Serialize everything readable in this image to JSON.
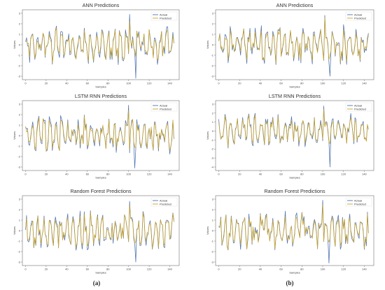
{
  "column_labels": [
    "(a)",
    "(b)"
  ],
  "chart_data": [
    {
      "type": "line",
      "title": "ANN Predictions",
      "xlabel": "Samples",
      "ylabel": "Values",
      "xlim": [
        0,
        140
      ],
      "ylim": [
        -3,
        3
      ],
      "xticks": [
        0,
        20,
        40,
        60,
        80,
        100,
        120,
        140
      ],
      "yticks": [
        -3,
        -2,
        -1,
        0,
        1,
        2,
        3
      ],
      "legend": "top-right",
      "seed": 11,
      "spike_down": [
        107,
        -3.2
      ],
      "spike_up": [
        101,
        2.9
      ],
      "series": [
        {
          "name": "Actual",
          "color": "#4c72b0"
        },
        {
          "name": "Predicted",
          "color": "#c9a227"
        }
      ]
    },
    {
      "type": "line",
      "title": "ANN Predictions",
      "xlabel": "Samples",
      "ylabel": "Values",
      "xlim": [
        0,
        140
      ],
      "ylim": [
        -3,
        3
      ],
      "xticks": [
        0,
        20,
        40,
        60,
        80,
        100,
        120,
        140
      ],
      "yticks": [
        -3,
        -2,
        -1,
        0,
        1,
        2,
        3
      ],
      "legend": "top-right",
      "seed": 23,
      "spike_down": [
        107,
        -3.0
      ],
      "spike_up": [
        102,
        2.8
      ],
      "series": [
        {
          "name": "Actual",
          "color": "#4c72b0"
        },
        {
          "name": "Predicted",
          "color": "#c9a227"
        }
      ]
    },
    {
      "type": "line",
      "title": "LSTM RNN Predictions",
      "xlabel": "Samples",
      "ylabel": "Values",
      "xlim": [
        0,
        140
      ],
      "ylim": [
        -3,
        3
      ],
      "xticks": [
        0,
        20,
        40,
        60,
        80,
        100,
        120,
        140
      ],
      "yticks": [
        -3,
        -2,
        -1,
        0,
        1,
        2,
        3
      ],
      "legend": "top-right",
      "seed": 37,
      "spike_down": [
        106,
        -3.1
      ],
      "spike_up": [
        100,
        2.9
      ],
      "series": [
        {
          "name": "Actual",
          "color": "#4c72b0"
        },
        {
          "name": "Predicted",
          "color": "#c9a227"
        }
      ]
    },
    {
      "type": "line",
      "title": "LSTM RNN Predictions",
      "xlabel": "Samples",
      "ylabel": "Values",
      "xlim": [
        0,
        140
      ],
      "ylim": [
        -4,
        3
      ],
      "xticks": [
        0,
        20,
        40,
        60,
        80,
        100,
        120,
        140
      ],
      "yticks": [
        -4,
        -3,
        -2,
        -1,
        0,
        1,
        2,
        3
      ],
      "legend": "top-right",
      "seed": 41,
      "spike_down": [
        107,
        -4.0
      ],
      "spike_up": [
        101,
        2.8
      ],
      "series": [
        {
          "name": "Actual",
          "color": "#4c72b0"
        },
        {
          "name": "Predicted",
          "color": "#c9a227"
        }
      ]
    },
    {
      "type": "line",
      "title": "Random Forest Predictions",
      "xlabel": "Samples",
      "ylabel": "Values",
      "xlim": [
        0,
        140
      ],
      "ylim": [
        -3,
        3
      ],
      "xticks": [
        0,
        20,
        40,
        60,
        80,
        100,
        120,
        140
      ],
      "yticks": [
        -3,
        -2,
        -1,
        0,
        1,
        2,
        3
      ],
      "legend": "top-right",
      "seed": 53,
      "spike_down": [
        107,
        -3.0
      ],
      "spike_up": [
        101,
        2.8
      ],
      "series": [
        {
          "name": "Actual",
          "color": "#4c72b0"
        },
        {
          "name": "Predicted",
          "color": "#c9a227"
        }
      ]
    },
    {
      "type": "line",
      "title": "Random Forest Predictions",
      "xlabel": "Samples",
      "ylabel": "Values",
      "xlim": [
        0,
        140
      ],
      "ylim": [
        -3,
        3
      ],
      "xticks": [
        0,
        20,
        40,
        60,
        80,
        100,
        120,
        140
      ],
      "yticks": [
        -3,
        -2,
        -1,
        0,
        1,
        2,
        3
      ],
      "legend": "top-right",
      "seed": 67,
      "spike_down": [
        106,
        -3.1
      ],
      "spike_up": [
        100,
        2.9
      ],
      "series": [
        {
          "name": "Actual",
          "color": "#4c72b0"
        },
        {
          "name": "Predicted",
          "color": "#c9a227"
        }
      ]
    }
  ]
}
